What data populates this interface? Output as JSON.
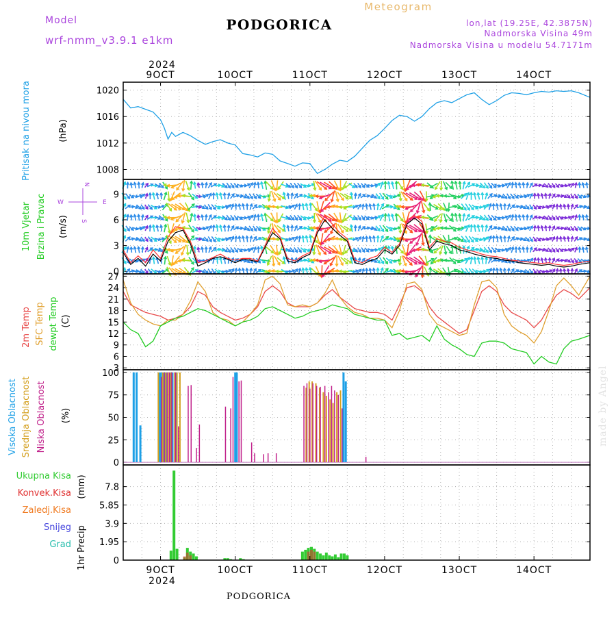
{
  "header": {
    "model_label": "Model",
    "model_name": "wrf-nmm_v3.9.1 e1km",
    "station": "PODGORICA",
    "meteogram": "Meteogram",
    "lonlat": "lon,lat (19.25E, 42.3875N)",
    "elevation": "Nadmorska Visina 49m",
    "model_elevation": "Nadmorska Visina u modelu 54.7171m",
    "footer_station": "PODGORICA",
    "credit": "made by Angel"
  },
  "colors": {
    "pressure": "#1ea0e6",
    "wind_speed": "#000000",
    "gust": "#ff3030",
    "temp2m": "#e84848",
    "sfc_temp": "#e0a030",
    "dewpt": "#22cc22",
    "cloud_high": "#1ea0e6",
    "cloud_mid": "#d4a020",
    "cloud_low": "#c0208a",
    "precip_total": "#33cc33",
    "precip_conv": "#e03030",
    "precip_frozen": "#f07a20",
    "snow": "#4444dd",
    "graupel": "#22bbaa",
    "purple_text": "#aa44dd"
  },
  "time_axis": {
    "top_year": "2024",
    "bottom_year": "2024",
    "ticks": [
      {
        "day": 9,
        "label": "9OCT"
      },
      {
        "day": 10,
        "label": "10OCT"
      },
      {
        "day": 11,
        "label": "11OCT"
      },
      {
        "day": 12,
        "label": "12OCT"
      },
      {
        "day": 13,
        "label": "13OCT"
      },
      {
        "day": 14,
        "label": "14OCT"
      }
    ],
    "start_day": 8.5,
    "end_day": 14.75
  },
  "chart_data": [
    {
      "type": "line",
      "panel": "pressure",
      "ylabel_main": "Pritisak na nivou mora",
      "ylabel_unit": "(hPa)",
      "ylim": [
        1006.5,
        1021.2
      ],
      "yticks": [
        1008,
        1012,
        1016,
        1020
      ],
      "grid": true,
      "x_days": [
        8.5,
        8.6,
        8.7,
        8.8,
        8.9,
        9.0,
        9.05,
        9.1,
        9.15,
        9.2,
        9.3,
        9.4,
        9.5,
        9.6,
        9.7,
        9.8,
        9.9,
        10.0,
        10.1,
        10.2,
        10.3,
        10.4,
        10.5,
        10.6,
        10.7,
        10.8,
        10.9,
        11.0,
        11.05,
        11.1,
        11.2,
        11.3,
        11.4,
        11.5,
        11.6,
        11.7,
        11.8,
        11.9,
        12.0,
        12.1,
        12.2,
        12.3,
        12.4,
        12.5,
        12.6,
        12.7,
        12.8,
        12.9,
        13.0,
        13.1,
        13.2,
        13.3,
        13.4,
        13.5,
        13.6,
        13.7,
        13.8,
        13.9,
        14.0,
        14.1,
        14.2,
        14.3,
        14.4,
        14.5,
        14.6,
        14.75
      ],
      "values": [
        1018.6,
        1017.3,
        1017.5,
        1017.1,
        1016.7,
        1015.5,
        1014.3,
        1012.6,
        1013.6,
        1013.0,
        1013.6,
        1013.1,
        1012.4,
        1011.8,
        1012.2,
        1012.5,
        1012.0,
        1011.7,
        1010.4,
        1010.2,
        1009.9,
        1010.5,
        1010.3,
        1009.3,
        1008.9,
        1008.5,
        1009.0,
        1008.9,
        1008.1,
        1007.4,
        1008.0,
        1008.8,
        1009.4,
        1009.2,
        1010.0,
        1011.2,
        1012.4,
        1013.1,
        1014.2,
        1015.4,
        1016.2,
        1016.0,
        1015.3,
        1016.0,
        1017.2,
        1018.1,
        1018.4,
        1018.1,
        1018.7,
        1019.3,
        1019.6,
        1018.6,
        1017.8,
        1018.4,
        1019.2,
        1019.6,
        1019.5,
        1019.3,
        1019.6,
        1019.8,
        1019.7,
        1019.9,
        1019.8,
        1019.9,
        1019.6,
        1018.9
      ]
    },
    {
      "type": "line",
      "panel": "wind",
      "ylabel_main": "10m Vjetar",
      "ylabel_sub": "Brzina i Pravac",
      "ylabel_unit": "(m/s)",
      "compass": {
        "n": "N",
        "w": "W",
        "e": "E",
        "s": "S"
      },
      "ylim": [
        -0.3,
        10.7
      ],
      "yticks": [
        0,
        3,
        6,
        9
      ],
      "grid": true,
      "x_days": [
        8.5,
        8.6,
        8.7,
        8.8,
        8.9,
        9.0,
        9.1,
        9.2,
        9.3,
        9.4,
        9.5,
        9.6,
        9.7,
        9.8,
        9.9,
        10.0,
        10.1,
        10.2,
        10.3,
        10.4,
        10.5,
        10.6,
        10.7,
        10.8,
        10.9,
        11.0,
        11.1,
        11.2,
        11.3,
        11.4,
        11.5,
        11.6,
        11.7,
        11.8,
        11.9,
        12.0,
        12.1,
        12.2,
        12.3,
        12.4,
        12.5,
        12.6,
        12.7,
        12.8,
        12.9,
        13.0,
        13.1,
        13.2,
        13.3,
        13.4,
        13.5,
        13.6,
        13.7,
        13.8,
        13.9,
        14.0,
        14.1,
        14.2,
        14.3,
        14.4,
        14.5,
        14.6,
        14.75
      ],
      "series": [
        {
          "key": "speed",
          "values": [
            2.2,
            0.8,
            1.5,
            0.6,
            2.0,
            1.2,
            3.5,
            4.5,
            4.8,
            3.2,
            0.6,
            1.0,
            1.5,
            1.7,
            1.4,
            1.0,
            1.4,
            1.3,
            1.1,
            2.8,
            4.5,
            3.8,
            1.2,
            1.0,
            1.6,
            2.0,
            4.5,
            6.0,
            5.0,
            4.2,
            3.5,
            1.0,
            0.8,
            1.2,
            1.5,
            2.5,
            2.0,
            3.0,
            5.5,
            6.2,
            5.5,
            2.5,
            3.5,
            3.2,
            3.0,
            2.5,
            2.3,
            2.0,
            1.8,
            1.6,
            1.5,
            1.3,
            1.2,
            1.0,
            0.9,
            0.8,
            0.7,
            0.8,
            0.6,
            0.5,
            0.6,
            0.8,
            1.0
          ]
        },
        {
          "key": "gust",
          "values": [
            2.5,
            1.0,
            1.8,
            1.0,
            2.5,
            1.5,
            4.0,
            5.2,
            5.0,
            3.5,
            1.0,
            1.2,
            1.6,
            2.0,
            1.5,
            1.3,
            1.5,
            1.5,
            1.2,
            3.0,
            5.0,
            4.0,
            1.5,
            1.2,
            1.8,
            2.2,
            4.8,
            6.5,
            5.5,
            4.5,
            3.8,
            1.3,
            1.0,
            1.5,
            1.8,
            2.8,
            2.2,
            3.2,
            6.0,
            6.5,
            5.8,
            2.8,
            3.8,
            3.5,
            3.3,
            2.8,
            2.5,
            2.3,
            2.0,
            1.8,
            1.7,
            1.5,
            1.3,
            1.2,
            1.1,
            1.0,
            0.9,
            1.0,
            0.8,
            0.7,
            0.8,
            1.0,
            1.2
          ]
        }
      ]
    },
    {
      "type": "line",
      "panel": "temperature",
      "ylabel_lines": [
        "2m Temp",
        "SFC Temp",
        "dewpt Temp"
      ],
      "ylabel_unit": "(C)",
      "ylim": [
        2.5,
        27.6
      ],
      "yticks": [
        3,
        6,
        9,
        12,
        15,
        18,
        21,
        24,
        27
      ],
      "grid": true,
      "x_days": [
        8.5,
        8.6,
        8.7,
        8.8,
        8.9,
        9.0,
        9.1,
        9.2,
        9.3,
        9.4,
        9.5,
        9.6,
        9.7,
        9.8,
        9.9,
        10.0,
        10.1,
        10.2,
        10.3,
        10.4,
        10.5,
        10.6,
        10.7,
        10.8,
        10.9,
        11.0,
        11.1,
        11.2,
        11.3,
        11.4,
        11.5,
        11.6,
        11.7,
        11.8,
        11.9,
        12.0,
        12.1,
        12.2,
        12.3,
        12.4,
        12.5,
        12.6,
        12.7,
        12.8,
        12.9,
        13.0,
        13.1,
        13.2,
        13.3,
        13.4,
        13.5,
        13.6,
        13.7,
        13.8,
        13.9,
        14.0,
        14.1,
        14.2,
        14.3,
        14.4,
        14.5,
        14.6,
        14.75
      ],
      "series": [
        {
          "name": "2m Temp",
          "values": [
            23.0,
            19.5,
            18.5,
            17.5,
            17.0,
            16.5,
            15.5,
            16.0,
            17.0,
            19.0,
            23.0,
            22.0,
            19.0,
            17.5,
            16.5,
            15.5,
            16.0,
            17.0,
            19.0,
            23.0,
            24.5,
            23.0,
            20.0,
            19.0,
            19.0,
            19.0,
            20.0,
            22.0,
            23.5,
            21.5,
            20.0,
            18.5,
            18.0,
            17.5,
            17.5,
            17.0,
            15.5,
            19.5,
            24.0,
            24.5,
            23.0,
            19.0,
            16.5,
            15.0,
            13.5,
            12.0,
            13.0,
            18.0,
            23.0,
            24.5,
            23.0,
            19.5,
            17.5,
            16.5,
            15.5,
            13.5,
            15.5,
            19.0,
            22.0,
            23.5,
            22.5,
            21.0,
            24.0
          ]
        },
        {
          "name": "SFC Temp",
          "values": [
            26.0,
            20.0,
            17.0,
            15.5,
            14.5,
            14.0,
            15.5,
            15.5,
            17.0,
            20.5,
            25.5,
            23.0,
            17.5,
            16.0,
            15.5,
            14.0,
            15.0,
            17.0,
            19.5,
            26.0,
            27.0,
            25.0,
            19.5,
            19.0,
            19.5,
            19.0,
            20.0,
            22.5,
            26.0,
            21.5,
            19.0,
            17.5,
            17.0,
            16.0,
            16.0,
            15.5,
            13.5,
            18.0,
            25.0,
            25.5,
            23.5,
            17.0,
            14.5,
            13.5,
            12.5,
            11.5,
            12.0,
            19.5,
            25.5,
            26.0,
            24.0,
            17.0,
            14.0,
            12.5,
            11.5,
            9.5,
            12.5,
            18.0,
            24.5,
            26.5,
            24.5,
            22.0,
            27.0
          ]
        },
        {
          "name": "dewpt Temp",
          "values": [
            15.0,
            13.0,
            12.0,
            8.5,
            10.0,
            14.0,
            15.0,
            16.0,
            16.5,
            17.5,
            18.5,
            18.0,
            17.0,
            16.0,
            15.0,
            14.0,
            15.0,
            15.5,
            16.5,
            18.5,
            19.0,
            18.0,
            17.0,
            16.0,
            16.5,
            17.5,
            18.0,
            18.5,
            19.5,
            19.0,
            18.5,
            17.0,
            16.5,
            16.0,
            15.5,
            15.5,
            11.5,
            12.0,
            10.5,
            11.0,
            11.5,
            10.0,
            14.0,
            10.5,
            9.0,
            8.0,
            6.5,
            6.0,
            9.5,
            10.0,
            10.0,
            9.5,
            8.0,
            7.5,
            7.0,
            4.0,
            6.0,
            4.5,
            4.0,
            8.0,
            10.0,
            10.5,
            11.5
          ]
        }
      ]
    },
    {
      "type": "bar",
      "panel": "cloud",
      "ylabel_lines": [
        "Visoka Oblacnost",
        "Srednja Oblacnost",
        "Niska Oblacnost"
      ],
      "ylabel_unit": "(%)",
      "ylim": [
        -3,
        103
      ],
      "yticks": [
        0,
        25,
        50,
        75,
        100
      ],
      "grid": true,
      "series": [
        {
          "name": "Visoka Oblacnost",
          "x_days": [
            8.64,
            8.68,
            8.73,
            8.99,
            9.02,
            9.05,
            9.08,
            9.13,
            9.16,
            9.21,
            10.0,
            10.02,
            11.45,
            11.48
          ],
          "values": [
            100,
            100,
            41,
            100,
            100,
            100,
            100,
            100,
            100,
            100,
            100,
            100,
            100,
            90
          ]
        },
        {
          "name": "Srednja Oblacnost",
          "x_days": [
            8.97,
            9.03,
            9.07,
            9.11,
            9.14,
            9.19,
            9.22,
            9.26,
            10.95,
            10.99,
            11.03,
            11.08,
            11.13,
            11.18,
            11.22,
            11.27,
            11.31,
            11.36,
            11.41
          ],
          "values": [
            100,
            100,
            100,
            100,
            100,
            100,
            100,
            100,
            83,
            90,
            90,
            88,
            83,
            78,
            74,
            70,
            66,
            78,
            80
          ]
        },
        {
          "name": "Niska Oblacnost",
          "x_days": [
            9.01,
            9.05,
            9.09,
            9.12,
            9.15,
            9.2,
            9.24,
            9.37,
            9.41,
            9.48,
            9.52,
            9.87,
            9.94,
            9.97,
            10.05,
            10.08,
            10.22,
            10.26,
            10.38,
            10.44,
            10.55,
            10.92,
            10.96,
            11.0,
            11.04,
            11.09,
            11.14,
            11.2,
            11.25,
            11.29,
            11.33,
            11.38,
            11.43,
            11.75
          ],
          "values": [
            95,
            100,
            100,
            100,
            100,
            100,
            40,
            85,
            86,
            16,
            42,
            62,
            60,
            95,
            90,
            91,
            22,
            10,
            9,
            10,
            10,
            85,
            88,
            82,
            88,
            85,
            84,
            85,
            78,
            85,
            80,
            75,
            60,
            6
          ]
        }
      ]
    },
    {
      "type": "bar",
      "panel": "precip",
      "ylabel_main": "1hr Precip",
      "ylabel_unit": "(mm)",
      "legend": [
        "Ukupna Kisa",
        "Konvek.Kisa",
        "Zaledj.Kisa",
        "Snijeg",
        "Grad"
      ],
      "ylim": [
        0,
        10.1
      ],
      "yticks": [
        0,
        1.95,
        3.9,
        5.85,
        7.8
      ],
      "ytick_labels": [
        "0",
        "1.95",
        "3.9",
        "5.85",
        "7.8"
      ],
      "grid": true,
      "series": [
        {
          "name": "Ukupna Kisa",
          "x_days": [
            9.14,
            9.18,
            9.22,
            9.32,
            9.36,
            9.4,
            9.44,
            9.48,
            9.86,
            9.9,
            9.94,
            10.07,
            10.11,
            10.9,
            10.94,
            10.98,
            11.02,
            11.06,
            11.1,
            11.14,
            11.18,
            11.22,
            11.26,
            11.3,
            11.34,
            11.38,
            11.42,
            11.46,
            11.5
          ],
          "values": [
            1.0,
            9.5,
            1.2,
            0.3,
            1.3,
            0.9,
            0.7,
            0.4,
            0.2,
            0.2,
            0.1,
            0.2,
            0.1,
            0.9,
            1.1,
            1.3,
            1.4,
            1.2,
            0.9,
            0.7,
            0.5,
            0.8,
            0.5,
            0.4,
            0.6,
            0.3,
            0.7,
            0.7,
            0.5
          ]
        },
        {
          "name": "Konvek.Kisa",
          "x_days": [
            9.32,
            9.36,
            9.4,
            10.98,
            11.02,
            11.06
          ],
          "values": [
            0.4,
            0.8,
            0.5,
            0.9,
            1.1,
            0.9
          ]
        }
      ]
    }
  ]
}
